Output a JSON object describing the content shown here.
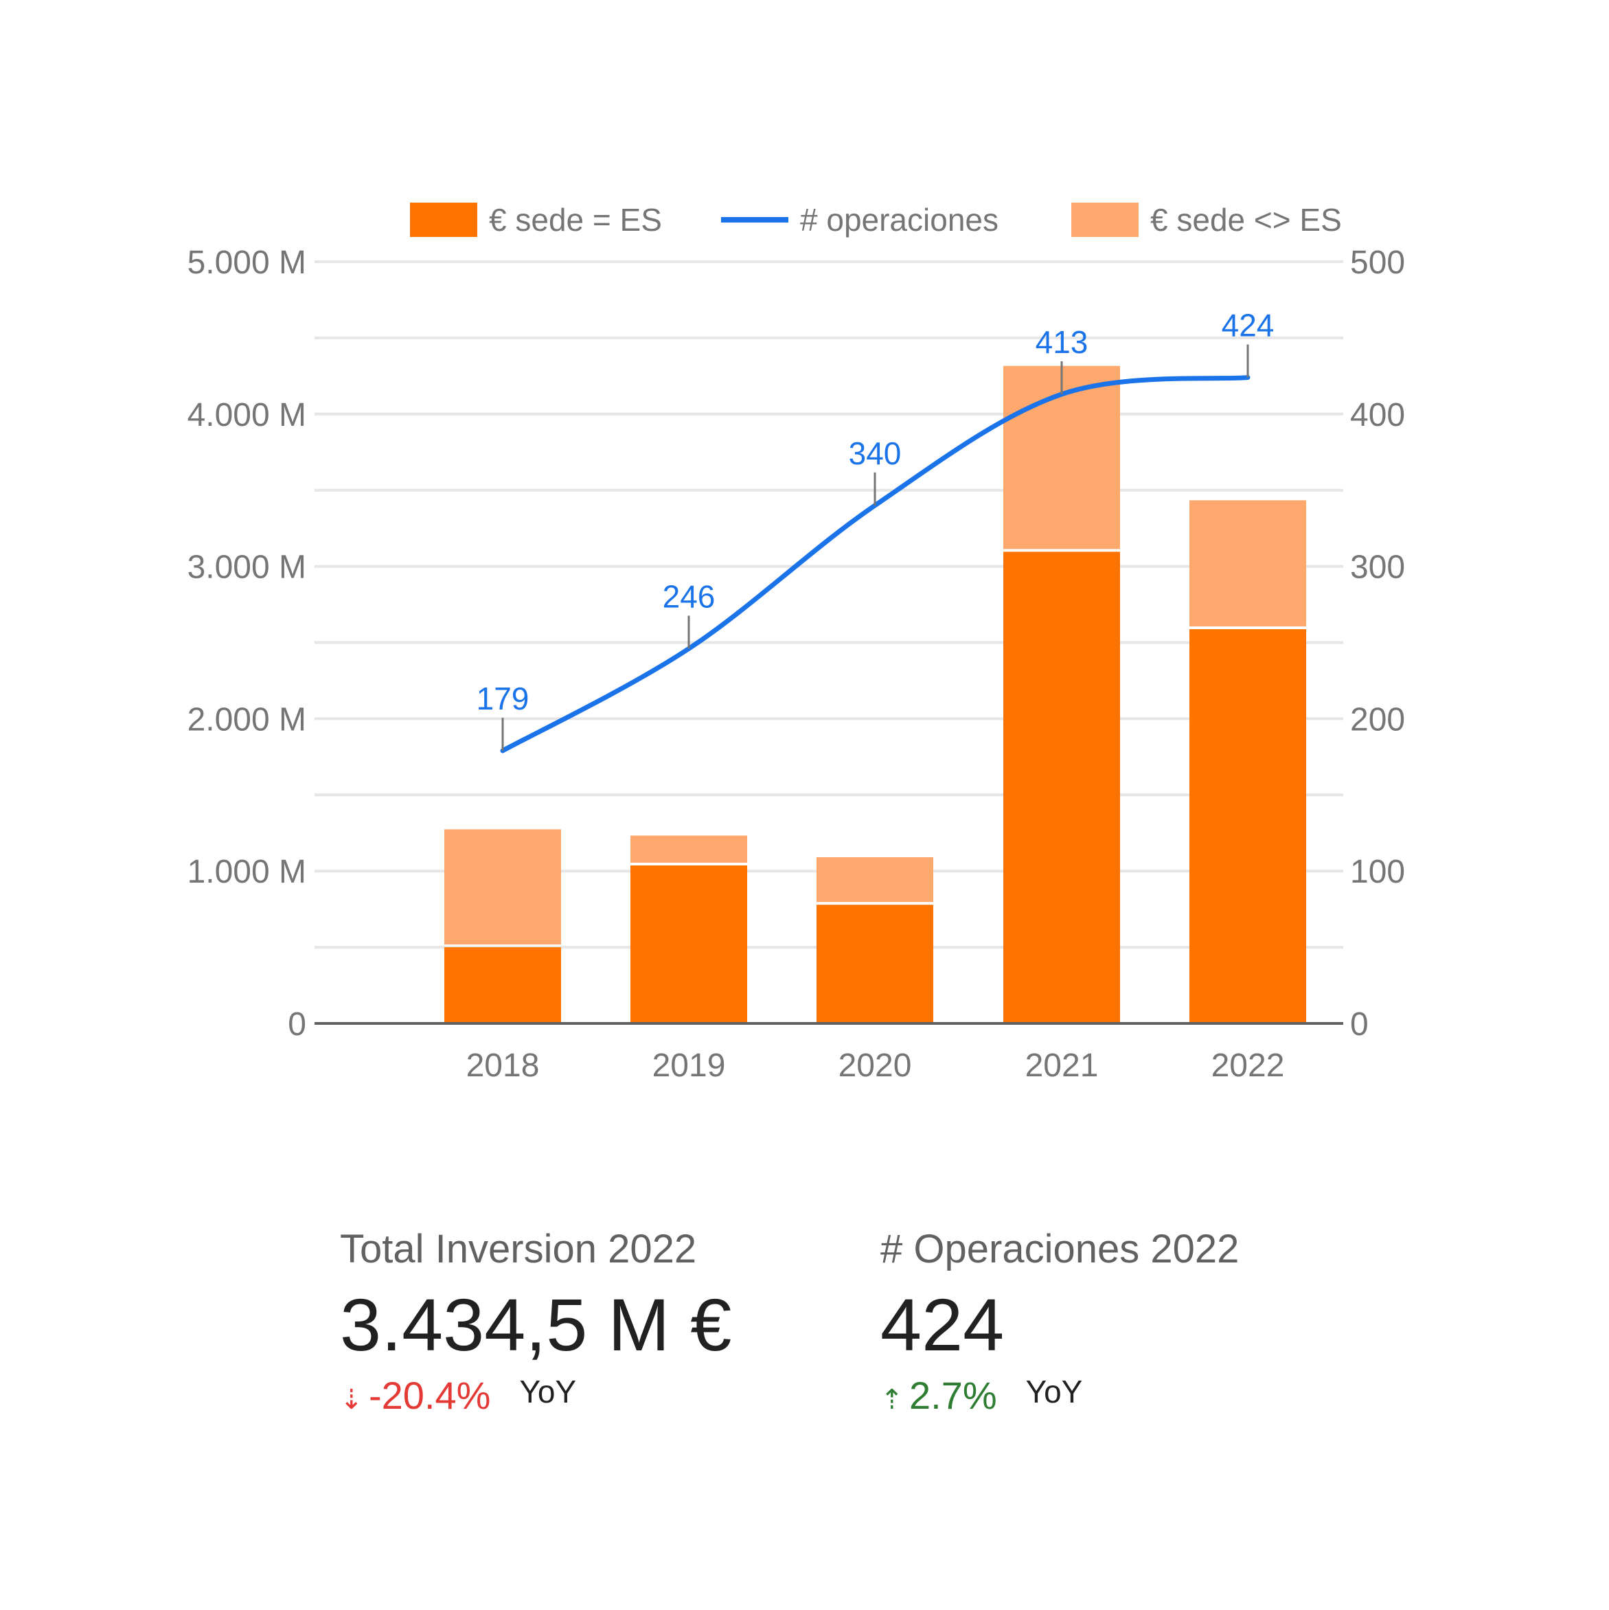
{
  "chart_data": {
    "type": "bar",
    "subtype": "stacked bar with line (combo, dual axis)",
    "categories": [
      "2018",
      "2019",
      "2020",
      "2021",
      "2022"
    ],
    "series": [
      {
        "name": "€ sede = ES",
        "type": "bar",
        "axis": "left",
        "color": "#ff7400",
        "values": [
          500,
          1037,
          779,
          3096,
          2588
        ]
      },
      {
        "name": "€ sede <> ES",
        "type": "bar",
        "axis": "left",
        "color": "#fea86d",
        "values": [
          774,
          196,
          312,
          1220,
          846
        ]
      },
      {
        "name": "# operaciones",
        "type": "line",
        "axis": "right",
        "color": "#1a73e8",
        "values": [
          179,
          246,
          340,
          413,
          424
        ],
        "data_labels": [
          "179",
          "246",
          "340",
          "413",
          "424"
        ]
      }
    ],
    "legend": [
      "€ sede = ES",
      "# operaciones",
      "€ sede <> ES"
    ],
    "legend_position": "top",
    "y_left": {
      "ticks": [
        "0",
        "1.000 M",
        "2.000 M",
        "3.000 M",
        "4.000 M",
        "5.000 M"
      ],
      "range": [
        0,
        5000
      ]
    },
    "y_right": {
      "ticks": [
        "0",
        "100",
        "200",
        "300",
        "400",
        "500"
      ],
      "range": [
        0,
        500
      ]
    },
    "grid": true,
    "title": "",
    "xlabel": "",
    "ylabel": ""
  },
  "legend": {
    "item_0": "€ sede = ES",
    "item_1": "# operaciones",
    "item_2": "€ sede <> ES"
  },
  "kpis": {
    "investment": {
      "title": "Total Inversion 2022",
      "value": "3.434,5 M €",
      "delta": "-20.4%",
      "delta_arrow": "⇣",
      "delta_label": "YoY"
    },
    "operations": {
      "title": "# Operaciones 2022",
      "value": "424",
      "delta": "2.7%",
      "delta_arrow": "⇡",
      "delta_label": "YoY"
    }
  }
}
